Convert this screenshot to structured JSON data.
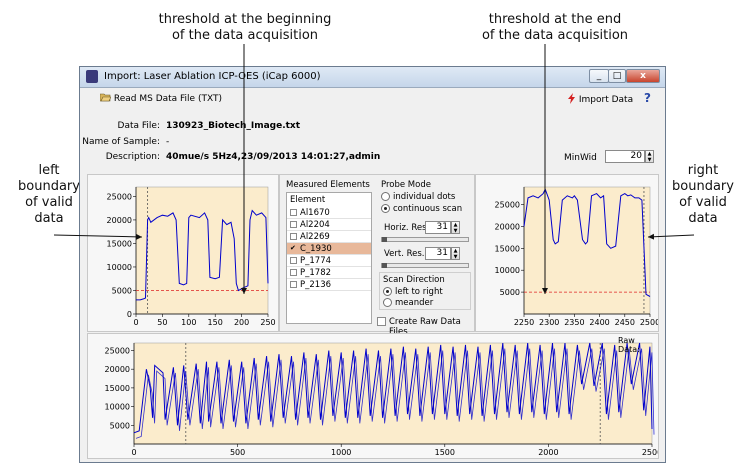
{
  "annotations": {
    "top_left": [
      "threshold at the beginning",
      "of the data acquisition"
    ],
    "top_right": [
      "threshold at the end",
      "of the data acquisition"
    ],
    "left": [
      "left",
      "boundary",
      "of valid",
      "data"
    ],
    "right": [
      "right",
      "boundary",
      "of valid",
      "data"
    ]
  },
  "window": {
    "title": "Import: Laser Ablation ICP-OES (iCap 6000)",
    "controls": {
      "minimize": "_",
      "maximize": "□",
      "close": "x"
    }
  },
  "toolbar": {
    "read_label": "Read MS Data File (TXT)",
    "import_label": "Import Data",
    "help_label": "?"
  },
  "info": {
    "data_file_label": "Data File:",
    "data_file_value": "130923_Biotech_Image.txt",
    "sample_label": "Name of Sample:",
    "sample_value": "-",
    "description_label": "Description:",
    "description_value": "40mue/s 5Hz4,23/09/2013 14:01:27,admin",
    "minwid_label": "MinWid",
    "minwid_value": "20"
  },
  "elements_panel": {
    "title": "Measured Elements",
    "header": "Element",
    "items": [
      {
        "label": "Al1670",
        "checked": false,
        "selected": false
      },
      {
        "label": "Al2204",
        "checked": false,
        "selected": false
      },
      {
        "label": "Al2269",
        "checked": false,
        "selected": false
      },
      {
        "label": "C_1930",
        "checked": true,
        "selected": true
      },
      {
        "label": "P_1774",
        "checked": false,
        "selected": false
      },
      {
        "label": "P_1782",
        "checked": false,
        "selected": false
      },
      {
        "label": "P_2136",
        "checked": false,
        "selected": false
      }
    ]
  },
  "probe_mode": {
    "title": "Probe Mode",
    "options": [
      "individual dots",
      "continuous scan"
    ],
    "selected": 1
  },
  "resolution": {
    "horiz_label": "Horiz. Res.",
    "horiz_value": "31",
    "vert_label": "Vert. Res.",
    "vert_value": "31"
  },
  "scan_direction": {
    "title": "Scan Direction",
    "options": [
      "left to right",
      "meander"
    ],
    "selected": 0
  },
  "create_raw_label": "Create Raw Data Files",
  "raw_data_label": "Raw Data:",
  "colors": {
    "plot_bg": "#fbeccc",
    "signal": "#0000cc",
    "threshold": "#dd2222",
    "boundary": "#555555",
    "selected_row": "#e8b89a"
  },
  "chart_data": [
    {
      "type": "line",
      "name": "left-detail",
      "xlim": [
        0,
        250
      ],
      "ylim": [
        0,
        27000
      ],
      "xticks": [
        0,
        50,
        100,
        150,
        200,
        250
      ],
      "yticks": [
        0,
        5000,
        10000,
        15000,
        20000,
        25000
      ],
      "threshold": 5000,
      "left_boundary": 22,
      "x": [
        0,
        8,
        14,
        18,
        22,
        24,
        28,
        40,
        50,
        60,
        70,
        76,
        82,
        90,
        96,
        100,
        104,
        120,
        130,
        136,
        140,
        150,
        158,
        164,
        172,
        180,
        186,
        190,
        194,
        202,
        212,
        216,
        220,
        228,
        238,
        246,
        250
      ],
      "y": [
        3000,
        3000,
        3200,
        3400,
        20000,
        20500,
        19500,
        20500,
        21000,
        20800,
        21500,
        20000,
        6500,
        6200,
        6500,
        20500,
        21000,
        20500,
        21500,
        20000,
        7800,
        7500,
        7800,
        20000,
        19000,
        19500,
        16000,
        6500,
        5000,
        5500,
        6000,
        20000,
        22000,
        21000,
        21500,
        20500,
        6500
      ]
    },
    {
      "type": "line",
      "name": "right-detail",
      "xlim": [
        2250,
        2500
      ],
      "ylim": [
        0,
        29000
      ],
      "xticks": [
        2250,
        2300,
        2350,
        2400,
        2450,
        2500
      ],
      "yticks": [
        5000,
        10000,
        15000,
        20000,
        25000
      ],
      "threshold": 5000,
      "right_boundary": 2488,
      "x": [
        2250,
        2258,
        2268,
        2278,
        2288,
        2292,
        2300,
        2308,
        2312,
        2318,
        2326,
        2336,
        2346,
        2350,
        2356,
        2366,
        2372,
        2376,
        2384,
        2394,
        2402,
        2408,
        2414,
        2422,
        2432,
        2442,
        2450,
        2456,
        2462,
        2470,
        2478,
        2484,
        2492,
        2500
      ],
      "y": [
        20000,
        26500,
        27000,
        26500,
        27500,
        28500,
        26000,
        17000,
        16000,
        16500,
        26000,
        27000,
        26500,
        27000,
        26000,
        17000,
        16000,
        16500,
        27000,
        27500,
        26500,
        27000,
        16000,
        15000,
        15500,
        27000,
        27500,
        27000,
        27200,
        26500,
        26500,
        26000,
        4500,
        4000
      ]
    },
    {
      "type": "line",
      "name": "raw-overview",
      "xlim": [
        0,
        2500
      ],
      "ylim": [
        0,
        27000
      ],
      "xticks": [
        0,
        500,
        1000,
        1500,
        2000,
        2500
      ],
      "yticks": [
        5000,
        10000,
        15000,
        20000,
        25000
      ],
      "boundaries": [
        250,
        2250
      ],
      "series": [
        {
          "x": [
            0,
            25,
            60,
            78,
            90,
            100,
            140,
            150,
            190,
            210,
            240,
            260,
            300,
            320,
            350,
            360,
            400,
            420,
            460,
            480,
            520,
            540,
            580,
            600,
            640,
            660,
            700,
            720,
            760,
            780,
            820,
            840,
            880,
            900,
            940,
            960,
            1000,
            1020,
            1060,
            1080,
            1120,
            1140,
            1180,
            1200,
            1240,
            1260,
            1300,
            1320,
            1360,
            1380,
            1420,
            1440,
            1480,
            1500,
            1540,
            1560,
            1600,
            1620,
            1660,
            1680,
            1720,
            1740,
            1780,
            1800,
            1840,
            1860,
            1900,
            1920,
            1960,
            1980,
            2020,
            2040,
            2080,
            2100,
            2140,
            2160,
            2200,
            2220,
            2260,
            2280,
            2320,
            2340,
            2380,
            2400,
            2440,
            2460,
            2490,
            2500
          ],
          "y": [
            3000,
            3500,
            20000,
            15000,
            7000,
            21000,
            19000,
            6500,
            20500,
            5000,
            21000,
            6500,
            21500,
            5500,
            22000,
            6000,
            22000,
            5500,
            22500,
            6000,
            22000,
            5500,
            23000,
            6500,
            23500,
            6000,
            24000,
            7000,
            23500,
            6500,
            24500,
            7000,
            24000,
            6500,
            25000,
            7500,
            24500,
            7000,
            25000,
            7000,
            25500,
            7500,
            25000,
            7000,
            25500,
            7500,
            26000,
            8000,
            25500,
            7500,
            26000,
            8000,
            26500,
            8000,
            26000,
            7500,
            26500,
            8000,
            26000,
            7500,
            26500,
            8000,
            27000,
            8500,
            26500,
            8000,
            27000,
            8500,
            26500,
            8000,
            27000,
            8500,
            27000,
            8000,
            26500,
            16000,
            27000,
            15500,
            27000,
            8000,
            26500,
            8500,
            27000,
            16000,
            27000,
            9000,
            26000,
            4000
          ]
        }
      ]
    }
  ]
}
